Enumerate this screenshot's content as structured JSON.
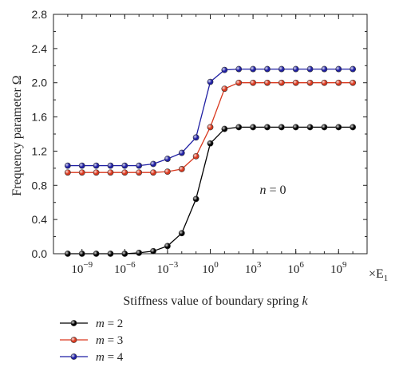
{
  "chart_data": {
    "type": "line",
    "title": "",
    "xlabel": "Stiffness value of boundary spring k",
    "xlabel_main": "Stiffness value of boundary spring ",
    "xlabel_var": "k",
    "ylabel": "Frequency parameter Ω",
    "x_unit_label": "×E",
    "x_unit_sub": "1",
    "x_scale": "log10",
    "xlim": [
      1e-11,
      100000000000.0
    ],
    "ylim": [
      0.0,
      2.8
    ],
    "yticks": [
      "0.0",
      "0.4",
      "0.8",
      "1.2",
      "1.6",
      "2.0",
      "2.4",
      "2.8"
    ],
    "xticks": [
      {
        "base": "10",
        "exp": "−9",
        "value": 1e-09
      },
      {
        "base": "10",
        "exp": "−6",
        "value": 1e-06
      },
      {
        "base": "10",
        "exp": "−3",
        "value": 0.001
      },
      {
        "base": "10",
        "exp": "0",
        "value": 1
      },
      {
        "base": "10",
        "exp": "3",
        "value": 1000.0
      },
      {
        "base": "10",
        "exp": "6",
        "value": 1000000.0
      },
      {
        "base": "10",
        "exp": "9",
        "value": 1000000000.0
      }
    ],
    "annotation": {
      "var": "n",
      "rest": " = 0"
    },
    "legend_position": "below",
    "grid": false,
    "x": [
      1e-10,
      1e-09,
      1e-08,
      1e-07,
      1e-06,
      1e-05,
      0.0001,
      0.001,
      0.01,
      0.1,
      1,
      10,
      100,
      1000.0,
      10000.0,
      100000.0,
      1000000.0,
      10000000.0,
      100000000.0,
      1000000000.0,
      10000000000.0
    ],
    "series": [
      {
        "name": "m = 2",
        "var": "m",
        "rest": " = 2",
        "color": "#000000",
        "values": [
          0.0,
          0.0,
          0.0,
          0.0,
          0.0,
          0.01,
          0.03,
          0.09,
          0.24,
          0.64,
          1.29,
          1.46,
          1.48,
          1.48,
          1.48,
          1.48,
          1.48,
          1.48,
          1.48,
          1.48,
          1.48
        ]
      },
      {
        "name": "m = 3",
        "var": "m",
        "rest": " = 3",
        "color": "#d9381e",
        "values": [
          0.95,
          0.95,
          0.95,
          0.95,
          0.95,
          0.95,
          0.95,
          0.96,
          0.99,
          1.14,
          1.48,
          1.93,
          2.0,
          2.0,
          2.0,
          2.0,
          2.0,
          2.0,
          2.0,
          2.0,
          2.0
        ]
      },
      {
        "name": "m = 4",
        "var": "m",
        "rest": " = 4",
        "color": "#1f1fa3",
        "values": [
          1.03,
          1.03,
          1.03,
          1.03,
          1.03,
          1.03,
          1.05,
          1.11,
          1.18,
          1.36,
          2.01,
          2.15,
          2.16,
          2.16,
          2.16,
          2.16,
          2.16,
          2.16,
          2.16,
          2.16,
          2.16
        ]
      }
    ]
  }
}
